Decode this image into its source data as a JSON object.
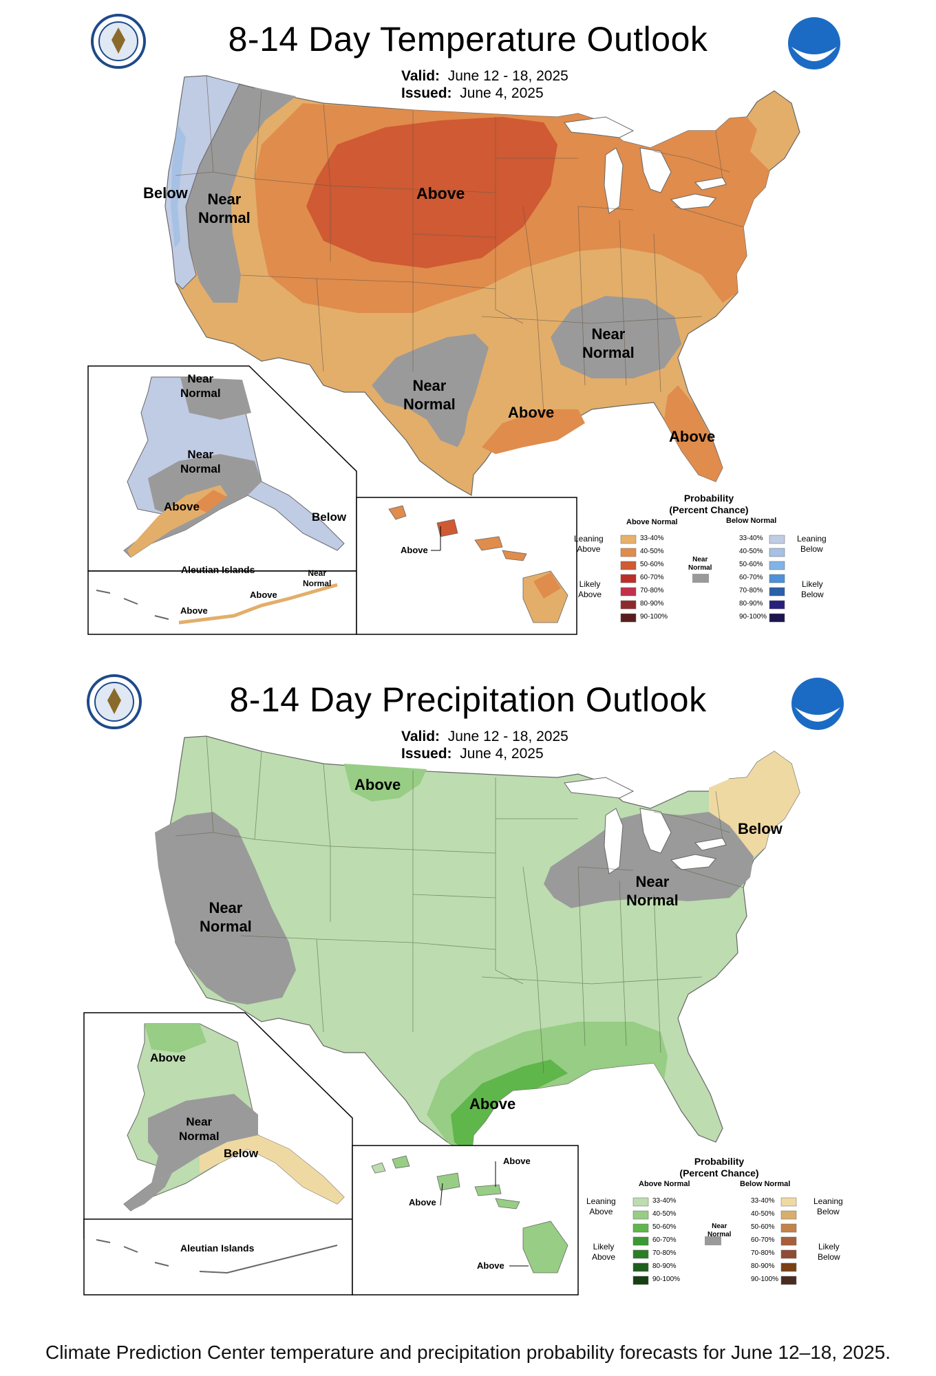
{
  "caption": "Climate Prediction Center temperature and precipitation probability forecasts for June 12–18, 2025.",
  "temperature": {
    "title": "8-14 Day Temperature Outlook",
    "valid_label": "Valid:",
    "valid": "June 12 - 18, 2025",
    "issued_label": "Issued:",
    "issued": "June 4, 2025",
    "regions": {
      "west_coast": "Below",
      "west_near_1": "Near",
      "west_near_2": "Normal",
      "plains": "Above",
      "southeast_near_1": "Near",
      "southeast_near_2": "Normal",
      "texas_near_1": "Near",
      "texas_near_2": "Normal",
      "gulf": "Above",
      "florida": "Above"
    },
    "alaska": {
      "north_near_1": "Near",
      "north_near_2": "Normal",
      "mid_near_1": "Near",
      "mid_near_2": "Normal",
      "south": "Above",
      "panhandle": "Below"
    },
    "aleutians": {
      "title": "Aleutian Islands",
      "near_1": "Near",
      "near_2": "Normal",
      "above_1": "Above",
      "above_2": "Above"
    },
    "hawaii": {
      "label": "Above"
    },
    "legend": {
      "title_1": "Probability",
      "title_2": "(Percent Chance)",
      "above_header": "Above Normal",
      "below_header": "Below Normal",
      "leaning_above_1": "Leaning",
      "leaning_above_2": "Above",
      "likely_above_1": "Likely",
      "likely_above_2": "Above",
      "leaning_below_1": "Leaning",
      "leaning_below_2": "Below",
      "likely_below_1": "Likely",
      "likely_below_2": "Below",
      "near_1": "Near",
      "near_2": "Normal",
      "bins": [
        "33-40%",
        "40-50%",
        "50-60%",
        "60-70%",
        "70-80%",
        "80-90%",
        "90-100%"
      ],
      "above_colors": [
        "#e8b06a",
        "#e08c4c",
        "#cf5a33",
        "#bd2f2a",
        "#c4304a",
        "#8e2a2e",
        "#5a1d1d"
      ],
      "below_colors": [
        "#c0cbe4",
        "#a6c1e4",
        "#82b3e6",
        "#4c91d9",
        "#2a5fa9",
        "#27217d",
        "#1b1550"
      ],
      "near_color": "#9a9a9a"
    }
  },
  "precipitation": {
    "title": "8-14 Day Precipitation Outlook",
    "valid_label": "Valid:",
    "valid": "June 12 - 18, 2025",
    "issued_label": "Issued:",
    "issued": "June 4, 2025",
    "regions": {
      "north": "Above",
      "northeast": "Below",
      "california_near_1": "Near",
      "california_near_2": "Normal",
      "ohio_near_1": "Near",
      "ohio_near_2": "Normal",
      "gulf": "Above"
    },
    "alaska": {
      "north": "Above",
      "mid_near_1": "Near",
      "mid_near_2": "Normal",
      "south": "Below"
    },
    "aleutians": {
      "title": "Aleutian Islands"
    },
    "hawaii": {
      "label_1": "Above",
      "label_2": "Above",
      "label_3": "Above"
    },
    "legend": {
      "title_1": "Probability",
      "title_2": "(Percent Chance)",
      "above_header": "Above Normal",
      "below_header": "Below Normal",
      "leaning_above_1": "Leaning",
      "leaning_above_2": "Above",
      "likely_above_1": "Likely",
      "likely_above_2": "Above",
      "leaning_below_1": "Leaning",
      "leaning_below_2": "Below",
      "likely_below_1": "Likely",
      "likely_below_2": "Below",
      "near_1": "Near",
      "near_2": "Normal",
      "bins": [
        "33-40%",
        "40-50%",
        "50-60%",
        "60-70%",
        "70-80%",
        "80-90%",
        "90-100%"
      ],
      "above_colors": [
        "#bddcb0",
        "#97cd84",
        "#5fb64a",
        "#3a9a32",
        "#2b7d26",
        "#1f5e1c",
        "#173f14"
      ],
      "below_colors": [
        "#efd9a3",
        "#d9ae6d",
        "#c4834a",
        "#a85e3a",
        "#8f4b33",
        "#7a3f13",
        "#4a2b22"
      ],
      "near_color": "#9a9a9a"
    }
  }
}
